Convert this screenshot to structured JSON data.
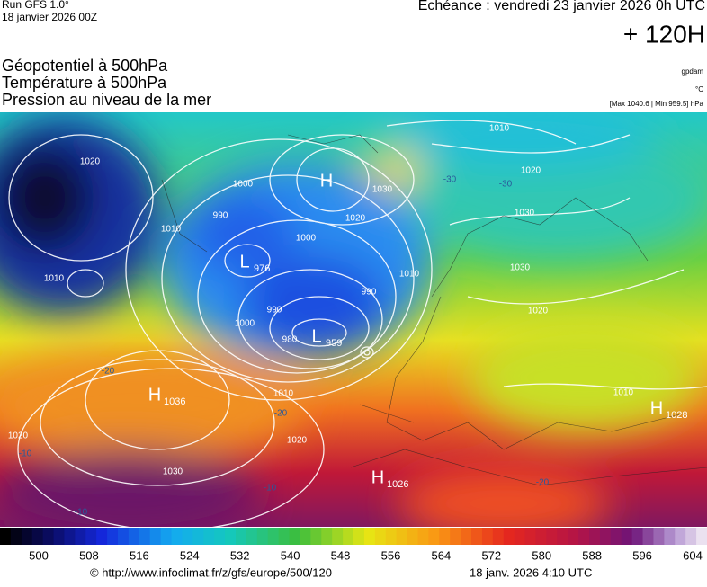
{
  "header": {
    "run": "Run GFS 1.0°",
    "run_date": "18 janvier 2026 00Z",
    "echeance": "Echéance : vendredi 23 janvier 2026 0h UTC",
    "lead": "+ 120H",
    "titles": [
      "Géopotentiel à 500hPa",
      "Température à 500hPa",
      "Pression au niveau de la mer"
    ],
    "unit_gp": "gpdam",
    "unit_t": "°C",
    "minmax": "[Max 1040.6 | Min 959.5] hPa"
  },
  "map": {
    "centers": [
      {
        "label": "H",
        "value": ""
      },
      {
        "label": "L",
        "value": "976"
      },
      {
        "label": "L",
        "value": "959"
      },
      {
        "label": "H",
        "value": "1036"
      },
      {
        "label": "H",
        "value": "1026"
      },
      {
        "label": "H",
        "value": "1028"
      }
    ],
    "isobar_labels": [
      "1020",
      "1010",
      "1000",
      "990",
      "1010",
      "1000",
      "1020",
      "1030",
      "1010",
      "990",
      "990",
      "1000",
      "980",
      "1010",
      "1020",
      "1030",
      "1020",
      "1020",
      "1030",
      "1030",
      "1020",
      "1010",
      "1010"
    ],
    "temp_labels": [
      "-30",
      "-30",
      "-20",
      "-20",
      "-10",
      "-10",
      "-10",
      "-20"
    ]
  },
  "colorbar": {
    "ticks": [
      500,
      508,
      516,
      524,
      532,
      540,
      548,
      556,
      564,
      572,
      580,
      588,
      596,
      604
    ]
  },
  "footer": {
    "url": "© http://www.infoclimat.fr/z/gfs/europe/500/120",
    "timestamp": "18 janv. 2026  4:10 UTC"
  }
}
